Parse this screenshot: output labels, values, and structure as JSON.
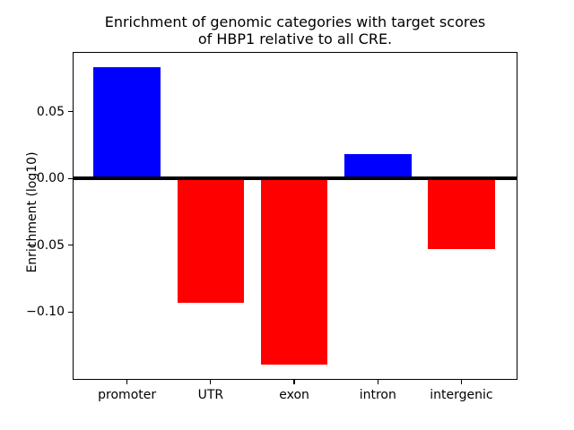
{
  "title": {
    "line1": "Enrichment of genomic categories with target scores",
    "line2": "of HBP1 relative to all CRE."
  },
  "ylabel": "Enrichment (log10)",
  "colors": {
    "positive_bar": "#0000ff",
    "negative_bar": "#ff0000",
    "axis": "#000000",
    "background": "#ffffff"
  },
  "chart_data": {
    "type": "bar",
    "title": "Enrichment of genomic categories with target scores of HBP1 relative to all CRE.",
    "xlabel": "",
    "ylabel": "Enrichment (log10)",
    "categories": [
      "promoter",
      "UTR",
      "exon",
      "intron",
      "intergenic"
    ],
    "values": [
      0.083,
      -0.093,
      -0.139,
      0.018,
      -0.053
    ],
    "bar_colors": [
      "#0000ff",
      "#ff0000",
      "#ff0000",
      "#0000ff",
      "#ff0000"
    ],
    "yticks": [
      0.05,
      0.0,
      -0.05,
      -0.1
    ],
    "ytick_labels": [
      "0.05",
      "0.00",
      "−0.05",
      "−0.10"
    ],
    "ylim": [
      -0.15,
      0.094
    ],
    "xlim": [
      -0.64,
      4.66
    ],
    "bar_width": 0.8,
    "zero_line": true,
    "grid": false,
    "legend": null
  }
}
